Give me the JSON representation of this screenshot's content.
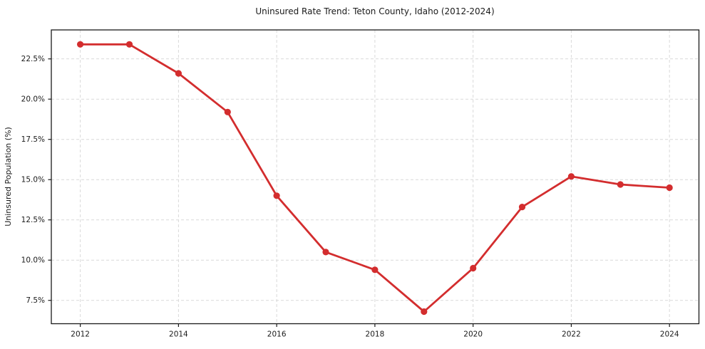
{
  "chart_data": {
    "type": "line",
    "title": "Uninsured Rate Trend: Teton County, Idaho (2012-2024)",
    "xlabel": "",
    "ylabel": "Uninsured Population (%)",
    "x": [
      2012,
      2013,
      2014,
      2015,
      2016,
      2017,
      2018,
      2019,
      2020,
      2021,
      2022,
      2023,
      2024
    ],
    "values": [
      23.4,
      23.4,
      21.6,
      19.2,
      14.0,
      10.5,
      9.4,
      6.8,
      9.5,
      13.3,
      15.2,
      14.7,
      14.5
    ],
    "x_tick_values": [
      2012,
      2014,
      2016,
      2018,
      2020,
      2022,
      2024
    ],
    "x_tick_labels": [
      "2012",
      "2014",
      "2016",
      "2018",
      "2020",
      "2022",
      "2024"
    ],
    "y_tick_values": [
      7.5,
      10.0,
      12.5,
      15.0,
      17.5,
      20.0,
      22.5
    ],
    "y_tick_labels": [
      "7.5%",
      "10.0%",
      "12.5%",
      "15.0%",
      "17.5%",
      "20.0%",
      "22.5%"
    ],
    "xlim": [
      2011.41,
      2024.6
    ],
    "ylim": [
      6.05,
      24.3
    ],
    "grid": true,
    "grid_style": "dashed",
    "legend": false,
    "line_color": "#d32d2e",
    "marker": "circle",
    "grid_color": "#d9d9d9",
    "axis_color": "#1a1a1a",
    "text_color": "#1a1a1a",
    "background_color": "#ffffff"
  }
}
